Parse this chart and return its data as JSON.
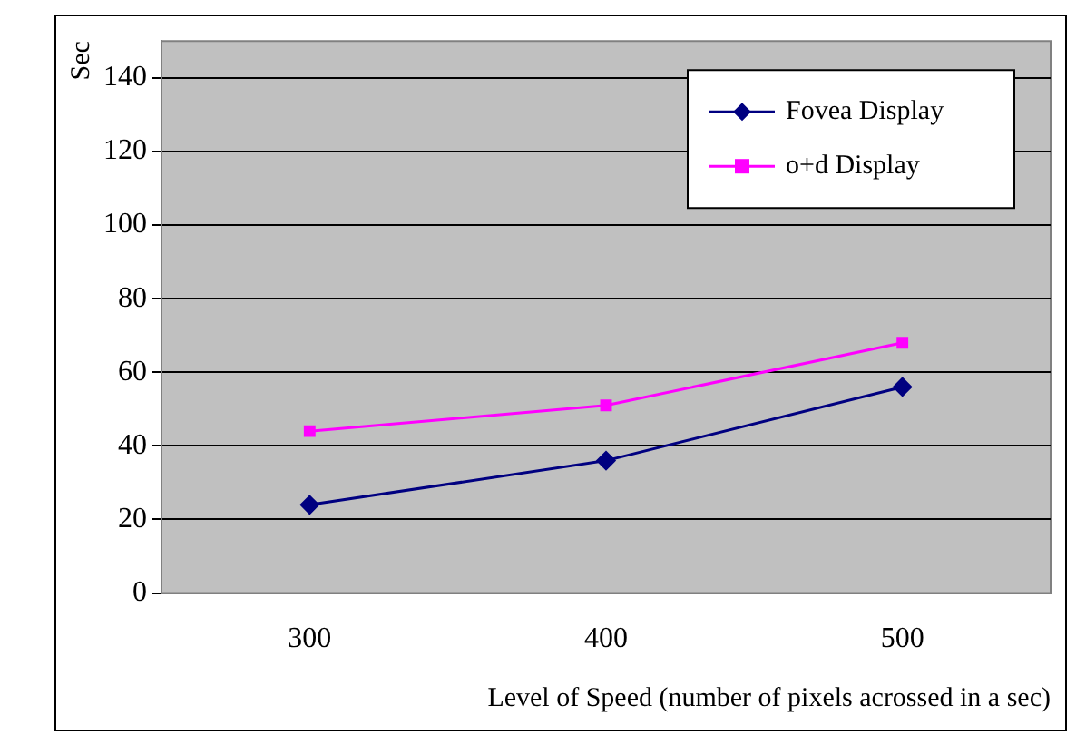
{
  "chart_data": {
    "type": "line",
    "xlabel": "Level of Speed (number of pixels acrossed in a sec)",
    "ylabel": "Sec",
    "categories": [
      "300",
      "400",
      "500"
    ],
    "series": [
      {
        "name": "Fovea Display",
        "color": "#000080",
        "marker": "diamond",
        "values": [
          24,
          36,
          56
        ]
      },
      {
        "name": "o+d Display",
        "color": "#ff00ff",
        "marker": "square",
        "values": [
          44,
          51,
          68
        ]
      }
    ],
    "ylim": [
      0,
      150
    ],
    "yticks": [
      0,
      20,
      40,
      60,
      80,
      100,
      120,
      140
    ],
    "grid": "y",
    "legend": "top right"
  }
}
